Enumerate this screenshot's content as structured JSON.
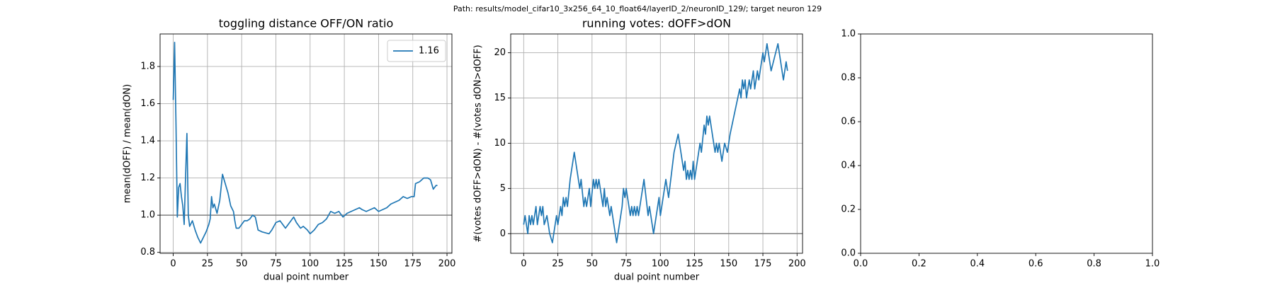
{
  "suptitle": "Path: results/model_cifar10_3x256_64_10_float64/layerID_2/neuronID_129/; target neuron 129",
  "chart_data": [
    {
      "type": "line",
      "title": "toggling distance OFF/ON ratio",
      "xlabel": "dual point number",
      "ylabel": "mean(dOFF) / mean(dON)",
      "xlim": [
        -9.6,
        203.6
      ],
      "ylim": [
        0.795,
        1.975
      ],
      "grid": true,
      "hline": {
        "value": 1,
        "color": "#808080"
      },
      "legend": "upper right",
      "xticks": [
        0,
        25,
        50,
        75,
        100,
        125,
        150,
        175,
        200
      ],
      "yticks": [
        0.8,
        {
          "value": 1,
          "label": "1.0"
        },
        1.2,
        1.4,
        1.6,
        1.8
      ],
      "series": [
        {
          "name": "1.16",
          "color": "#1f77b4",
          "x": [
            0,
            1,
            2,
            3,
            4,
            5,
            6,
            7,
            8,
            9,
            10,
            11,
            12,
            14,
            16,
            18,
            20,
            22,
            24,
            26,
            27,
            28,
            29,
            30,
            32,
            34,
            36,
            38,
            40,
            42,
            44,
            45,
            46,
            48,
            50,
            52,
            54,
            56,
            58,
            60,
            62,
            65,
            70,
            72,
            75,
            78,
            80,
            82,
            85,
            88,
            90,
            93,
            95,
            98,
            100,
            103,
            106,
            109,
            112,
            115,
            118,
            121,
            124,
            127,
            130,
            133,
            136,
            138,
            141,
            144,
            147,
            150,
            153,
            156,
            159,
            162,
            165,
            168,
            171,
            174,
            176,
            177,
            180,
            183,
            186,
            188,
            190,
            192,
            193
          ],
          "values": [
            1.62,
            1.93,
            1.5,
            0.99,
            1.15,
            1.17,
            1.1,
            1.05,
            0.95,
            1.2,
            1.44,
            1.0,
            0.94,
            0.97,
            0.92,
            0.88,
            0.85,
            0.88,
            0.91,
            0.95,
            0.98,
            1.1,
            1.04,
            1.06,
            1.01,
            1.08,
            1.22,
            1.17,
            1.12,
            1.05,
            1.02,
            0.97,
            0.93,
            0.93,
            0.95,
            0.97,
            0.97,
            0.98,
            1.0,
            0.99,
            0.92,
            0.91,
            0.9,
            0.92,
            0.96,
            0.97,
            0.95,
            0.93,
            0.96,
            0.99,
            0.96,
            0.93,
            0.94,
            0.92,
            0.9,
            0.92,
            0.95,
            0.96,
            0.98,
            1.02,
            1.01,
            1.02,
            0.99,
            1.01,
            1.02,
            1.03,
            1.04,
            1.03,
            1.02,
            1.03,
            1.04,
            1.02,
            1.03,
            1.04,
            1.06,
            1.07,
            1.08,
            1.1,
            1.09,
            1.1,
            1.1,
            1.17,
            1.18,
            1.2,
            1.2,
            1.19,
            1.14,
            1.16,
            1.16
          ]
        }
      ]
    },
    {
      "type": "line",
      "title": "running votes: dOFF>dON",
      "xlabel": "dual point number",
      "ylabel": "#(votes dOFF>dON) - #(votes dON>dOFF)",
      "xlim": [
        -9.5,
        204
      ],
      "ylim": [
        -2.17,
        22.08
      ],
      "grid": true,
      "hline": {
        "value": 0,
        "color": "#808080"
      },
      "xticks": [
        0,
        25,
        50,
        75,
        100,
        125,
        150,
        175,
        200
      ],
      "yticks": [
        0,
        5,
        10,
        15,
        20
      ],
      "series": [
        {
          "color": "#1f77b4",
          "x": [
            0,
            1,
            3,
            4,
            5,
            6,
            7,
            9,
            10,
            12,
            13,
            14,
            15,
            17,
            19,
            21,
            24,
            25,
            27,
            28,
            29,
            30,
            31,
            32,
            34,
            37,
            41,
            42,
            44,
            45,
            46,
            48,
            49,
            51,
            52,
            53,
            54,
            55,
            58,
            59,
            60,
            61,
            63,
            64,
            68,
            72,
            73,
            74,
            75,
            78,
            79,
            80,
            81,
            82,
            83,
            84,
            88,
            91,
            92,
            95,
            99,
            100,
            104,
            106,
            110,
            113,
            117,
            118,
            119,
            120,
            121,
            122,
            123,
            124,
            125,
            127,
            129,
            130,
            132,
            133,
            134,
            135,
            136,
            139,
            140,
            141,
            142,
            143,
            145,
            147,
            149,
            151,
            158,
            159,
            160,
            161,
            162,
            163,
            165,
            166,
            168,
            169,
            171,
            172,
            175,
            176,
            178,
            181,
            186,
            190,
            192,
            193
          ],
          "values": [
            1,
            2,
            0,
            2,
            1,
            2,
            1,
            3,
            1,
            3,
            2,
            3,
            1,
            2,
            0,
            -1,
            2,
            1,
            3,
            2,
            4,
            3,
            4,
            3,
            6,
            9,
            5,
            6,
            3,
            4,
            3,
            5,
            3,
            6,
            5,
            6,
            5,
            6,
            3,
            5,
            3,
            4,
            2,
            3,
            -1,
            3,
            5,
            4,
            5,
            2,
            3,
            2,
            3,
            2,
            3,
            2,
            6,
            2,
            3,
            0,
            4,
            2,
            6,
            4,
            9,
            11,
            7,
            8,
            6,
            7,
            6,
            7,
            6,
            8,
            6,
            8,
            10,
            9,
            12,
            11,
            13,
            12,
            13,
            10,
            9,
            10,
            9,
            10,
            8,
            10,
            9,
            11,
            16,
            15,
            17,
            16,
            17,
            15,
            17,
            16,
            18,
            16,
            18,
            17,
            20,
            19,
            21,
            18,
            21,
            17,
            19,
            18
          ]
        }
      ]
    },
    {
      "type": "line",
      "xlim": [
        0,
        1
      ],
      "ylim": [
        0,
        1
      ],
      "grid": false,
      "xticks": [
        {
          "value": 0,
          "label": "0.0"
        },
        {
          "value": 0.2,
          "label": "0.2"
        },
        {
          "value": 0.4,
          "label": "0.4"
        },
        {
          "value": 0.6,
          "label": "0.6"
        },
        {
          "value": 0.8,
          "label": "0.8"
        },
        {
          "value": 1,
          "label": "1.0"
        }
      ],
      "yticks": [
        {
          "value": 0,
          "label": "0.0"
        },
        {
          "value": 0.2,
          "label": "0.2"
        },
        {
          "value": 0.4,
          "label": "0.4"
        },
        {
          "value": 0.6,
          "label": "0.6"
        },
        {
          "value": 0.8,
          "label": "0.8"
        },
        {
          "value": 1,
          "label": "1.0"
        }
      ],
      "series": []
    }
  ]
}
